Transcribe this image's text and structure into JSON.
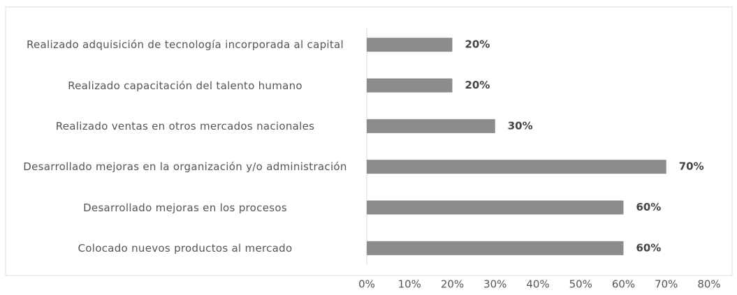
{
  "chart_data": {
    "type": "bar",
    "orientation": "horizontal",
    "categories": [
      "Realizado adquisición de tecnología incorporada al capital",
      "Realizado capacitación del talento humano",
      "Realizado ventas en otros mercados nacionales",
      "Desarrollado mejoras en la organización y/o administración",
      "Desarrollado mejoras en los procesos",
      "Colocado nuevos productos al mercado"
    ],
    "values": [
      20,
      20,
      30,
      70,
      60,
      60
    ],
    "value_labels": [
      "20%",
      "20%",
      "30%",
      "70%",
      "60%",
      "60%"
    ],
    "color": "#8c8c8c",
    "xlim": [
      0,
      80
    ],
    "xticks": [
      {
        "value": 0,
        "label": "0%"
      },
      {
        "value": 10,
        "label": "10%"
      },
      {
        "value": 20,
        "label": "20%"
      },
      {
        "value": 30,
        "label": "30%"
      },
      {
        "value": 40,
        "label": "40%"
      },
      {
        "value": 50,
        "label": "50%"
      },
      {
        "value": 60,
        "label": "60%"
      },
      {
        "value": 70,
        "label": "70%"
      },
      {
        "value": 80,
        "label": "80%"
      }
    ],
    "grid": false
  }
}
